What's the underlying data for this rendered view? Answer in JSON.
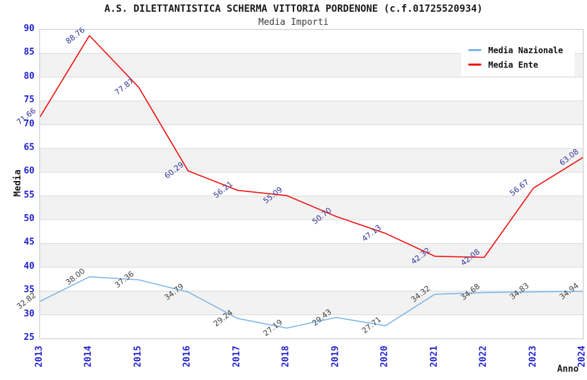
{
  "chart_data": {
    "type": "line",
    "title": "A.S. DILETTANTISTICA SCHERMA VITTORIA PORDENONE (c.f.01725520934)",
    "subtitle": "Media Importi",
    "xlabel": "Anno",
    "ylabel": "Media",
    "x": [
      "2013",
      "2014",
      "2015",
      "2016",
      "2017",
      "2018",
      "2019",
      "2020",
      "2021",
      "2022",
      "2023",
      "2024"
    ],
    "series": [
      {
        "name": "Media Nazionale",
        "color": "#7db7e8",
        "label_color": "#404040",
        "values": [
          32.82,
          38.0,
          37.36,
          34.79,
          29.24,
          27.19,
          29.43,
          27.71,
          34.32,
          34.68,
          34.83,
          34.94
        ]
      },
      {
        "name": "Media Ente",
        "color": "#ee0f0f",
        "label_color": "#333399",
        "values": [
          71.66,
          88.76,
          77.87,
          60.29,
          56.21,
          55.09,
          50.7,
          47.13,
          42.32,
          42.08,
          56.67,
          63.08
        ]
      }
    ],
    "ylim": [
      25,
      90
    ],
    "ytick_step": 5,
    "grid": "horizontal-bands",
    "legend_position": "top-right",
    "colors": {
      "tick_label": "#2323cf",
      "band_gray": "#f2f2f2",
      "gridline": "#dadada",
      "plot_border": "#c9c9c9"
    }
  }
}
